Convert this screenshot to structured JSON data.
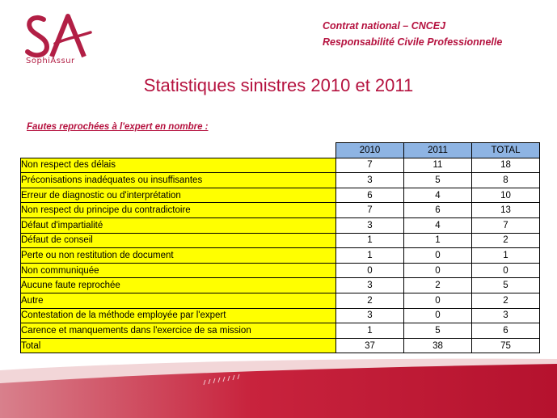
{
  "header": {
    "logo_text": "SophiAssur",
    "contract_line1": "Contrat national – CNCEJ",
    "contract_line2": "Responsabilité Civile Professionnelle"
  },
  "title": "Statistiques sinistres 2010 et 2011",
  "section_heading": "Fautes reprochées  à l'expert en nombre :",
  "colors": {
    "brand": "#b5123f",
    "label_fill": "#ffff00",
    "header_fill": "#8eb4e3"
  },
  "table": {
    "columns": [
      "2010",
      "2011",
      "TOTAL"
    ],
    "rows": [
      {
        "label": "Non respect des délais",
        "values": [
          "7",
          "11",
          "18"
        ]
      },
      {
        "label": "Préconisations inadéquates ou insuffisantes",
        "values": [
          "3",
          "5",
          "8"
        ]
      },
      {
        "label": "Erreur de diagnostic ou d'interprétation",
        "values": [
          "6",
          "4",
          "10"
        ]
      },
      {
        "label": "Non respect du principe du contradictoire",
        "values": [
          "7",
          "6",
          "13"
        ]
      },
      {
        "label": "Défaut d'impartialité",
        "values": [
          "3",
          "4",
          "7"
        ]
      },
      {
        "label": "Défaut de conseil",
        "values": [
          "1",
          "1",
          "2"
        ]
      },
      {
        "label": "Perte ou non restitution de document",
        "values": [
          "1",
          "0",
          "1"
        ]
      },
      {
        "label": "Non communiquée",
        "values": [
          "0",
          "0",
          "0"
        ]
      },
      {
        "label": "Aucune faute reprochée",
        "values": [
          "3",
          "2",
          "5"
        ]
      },
      {
        "label": "Autre",
        "values": [
          "2",
          "0",
          "2"
        ]
      },
      {
        "label": "Contestation de la méthode employée par l'expert",
        "values": [
          "3",
          "0",
          "3"
        ]
      },
      {
        "label": "Carence et manquements dans l'exercice de sa mission",
        "values": [
          "1",
          "5",
          "6"
        ]
      },
      {
        "label": "Total",
        "values": [
          "37",
          "38",
          "75"
        ]
      }
    ]
  }
}
